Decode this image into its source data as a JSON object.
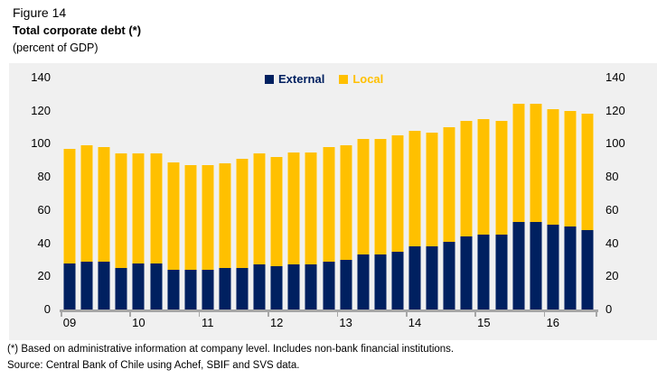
{
  "header": {
    "figure_label": "Figure 14",
    "title": "Total corporate debt (*)",
    "subtitle": "(percent of GDP)"
  },
  "footer": {
    "footnote": "(*) Based on administrative information at company level. Includes non-bank financial institutions.",
    "source": "Source: Central Bank of Chile using Achef, SBIF and SVS data."
  },
  "colors": {
    "external": "#002060",
    "local": "#FFC000",
    "panel_background": "#F0F0F0",
    "axis_line": "#A6A6A6",
    "text": "#000000"
  },
  "chart_data": {
    "type": "bar",
    "stacked": true,
    "title": "Total corporate debt (*)",
    "ylabel": "percent of GDP",
    "ylim": [
      0,
      140
    ],
    "y_tick_step": 20,
    "y_axis_sides": [
      "left",
      "right"
    ],
    "grid": false,
    "legend_position": "top-center",
    "frequency": "quarterly, 2009Q1 to 2016Q3",
    "bars_per_year": 4,
    "x_tick_labels": [
      "09",
      "10",
      "11",
      "12",
      "13",
      "14",
      "15",
      "16"
    ],
    "series": [
      {
        "name": "External",
        "color": "#002060",
        "values": [
          28,
          29,
          29,
          25,
          28,
          28,
          24,
          24,
          24,
          25,
          25,
          27,
          26,
          27,
          27,
          29,
          30,
          33,
          33,
          35,
          38,
          38,
          41,
          44,
          45,
          45,
          53,
          53,
          51,
          50,
          48
        ]
      },
      {
        "name": "Local",
        "color": "#FFC000",
        "values": [
          69,
          70,
          69,
          69,
          66,
          66,
          65,
          63,
          63,
          63,
          66,
          67,
          66,
          68,
          68,
          69,
          69,
          70,
          70,
          70,
          70,
          69,
          69,
          70,
          70,
          69,
          71,
          71,
          70,
          70,
          70
        ]
      }
    ]
  }
}
